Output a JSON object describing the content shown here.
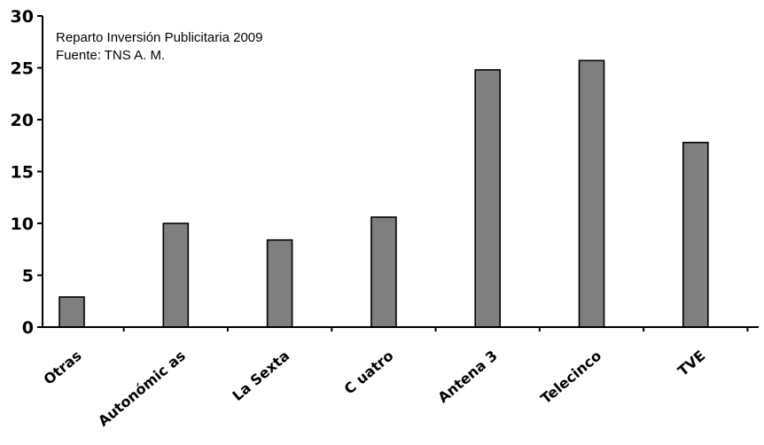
{
  "chart_data": {
    "type": "bar",
    "annotation_lines": [
      "Reparto Inversión Publicitaria 2009",
      "Fuente: TNS A. M."
    ],
    "categories": [
      "Otras",
      "Autonómicas",
      "La Sexta",
      "Cuatro",
      "Antena 3",
      "Telecinco",
      "TVE"
    ],
    "category_display": [
      "Otras",
      "Autonómic as",
      "La Sexta",
      "C uatro",
      "Antena 3",
      "Telecinco",
      "TVE"
    ],
    "values": [
      2.9,
      10.0,
      8.4,
      10.6,
      24.8,
      25.7,
      17.8
    ],
    "ylim": [
      0,
      30
    ],
    "yticks": [
      0,
      5,
      10,
      15,
      20,
      25,
      30
    ],
    "bar_color": "#7f7f7f",
    "grid": false
  }
}
